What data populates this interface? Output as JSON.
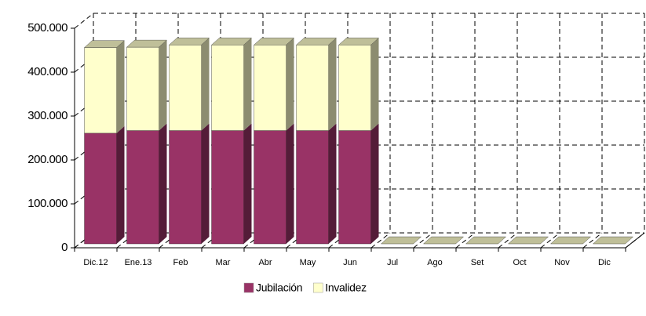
{
  "chart_data": {
    "type": "bar3d_stacked",
    "categories": [
      "Dic.12",
      "Ene.13",
      "Feb",
      "Mar",
      "Abr",
      "May",
      "Jun",
      "Jul",
      "Ago",
      "Set",
      "Oct",
      "Nov",
      "Dic"
    ],
    "series": [
      {
        "name": "Jubilación",
        "color": "#993366",
        "values": [
          252000,
          258000,
          258000,
          258000,
          258000,
          258000,
          258000,
          0,
          0,
          0,
          0,
          0,
          0
        ]
      },
      {
        "name": "Invalidez",
        "color": "#ffffcc",
        "values": [
          195000,
          190000,
          195000,
          195000,
          195000,
          195000,
          195000,
          0,
          0,
          0,
          0,
          0,
          0
        ]
      }
    ],
    "ylim": [
      0,
      500000
    ],
    "yticks": [
      0,
      {
        "value": 100000,
        "label": "100.000"
      },
      {
        "value": 200000,
        "label": "200.000"
      },
      {
        "value": 300000,
        "label": "300.000"
      },
      {
        "value": 400000,
        "label": "400.000"
      },
      {
        "value": 500000,
        "label": "500.000"
      }
    ],
    "grid": true
  }
}
